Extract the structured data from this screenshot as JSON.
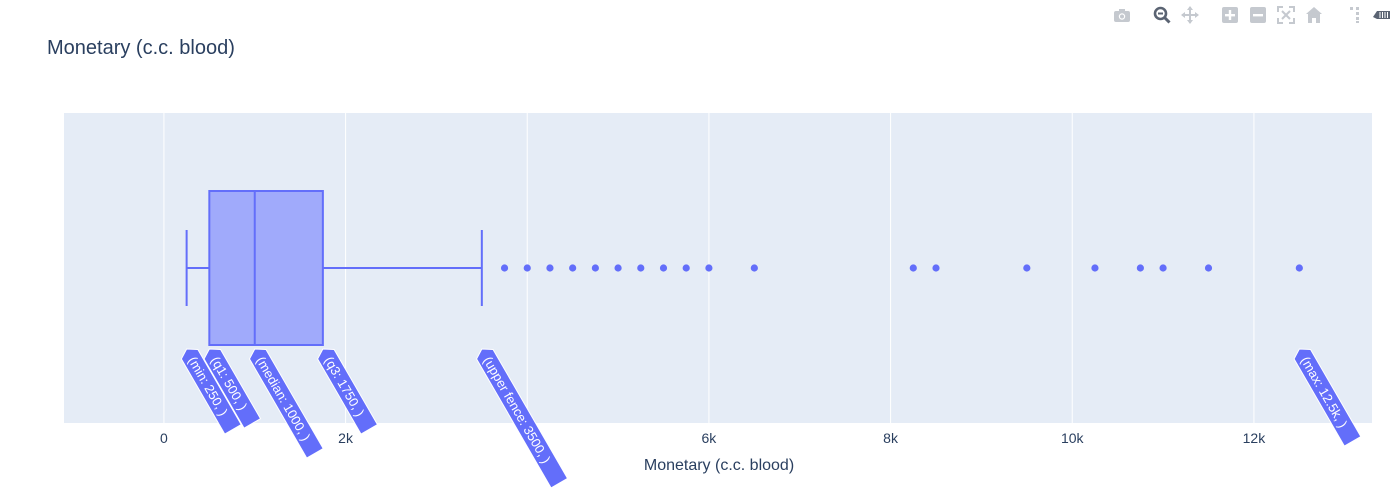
{
  "chart_data": {
    "type": "box",
    "orientation": "horizontal",
    "title": "Monetary (c.c. blood)",
    "xlabel": "Monetary (c.c. blood)",
    "ylabel": "",
    "xlim": [
      -1100,
      13300
    ],
    "xticks": [
      0,
      2000,
      4000,
      6000,
      8000,
      10000,
      12000
    ],
    "xtick_labels": [
      "0",
      "2k",
      "",
      "6k",
      "8k",
      "10k",
      "12k"
    ],
    "stats": {
      "min": 250,
      "q1": 500,
      "median": 1000,
      "q3": 1750,
      "upper_fence": 3500,
      "max": 12500
    },
    "outliers": [
      3750,
      4000,
      4250,
      4500,
      4750,
      5000,
      5250,
      5500,
      5750,
      6000,
      6500,
      8250,
      8500,
      9500,
      10250,
      10750,
      11000,
      11500,
      12500
    ],
    "hover_labels": [
      {
        "key": "min",
        "text": "(min: 250, )"
      },
      {
        "key": "q1",
        "text": "(q1: 500, )"
      },
      {
        "key": "median",
        "text": "(median: 1000, )"
      },
      {
        "key": "q3",
        "text": "(q3: 1750, )"
      },
      {
        "key": "upper_fence",
        "text": "(upper fence: 3500, )"
      },
      {
        "key": "max",
        "text": "(max: 12.5k, )"
      }
    ],
    "colors": {
      "box_line": "#636efa",
      "box_fill": "#a0aafb",
      "plot_bg": "#e5ecf6",
      "grid": "#ffffff",
      "text": "#2a3f5f",
      "label_bg": "#636efa"
    }
  },
  "modebar": {
    "icons": [
      "camera-icon",
      "zoom-icon",
      "pan-icon",
      "zoom-in-icon",
      "zoom-out-icon",
      "autoscale-icon",
      "reset-axes-icon",
      "spike-lines-icon",
      "plotly-logo-icon"
    ]
  }
}
